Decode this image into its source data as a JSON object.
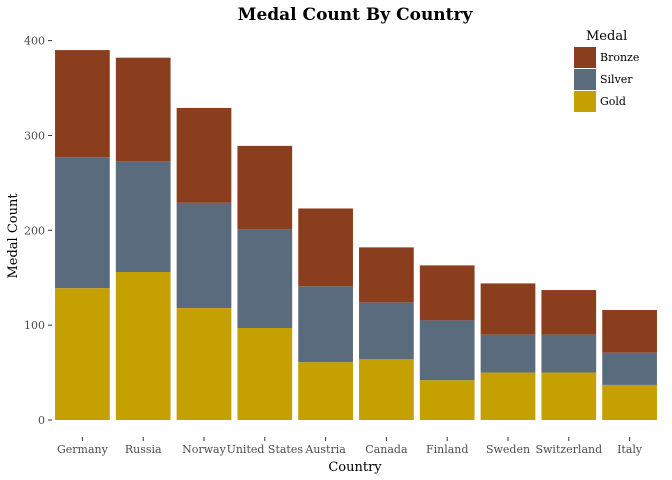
{
  "chart_data": {
    "type": "bar",
    "stacked": true,
    "title": "Medal Count By Country",
    "xlabel": "Country",
    "ylabel": "Medal Count",
    "categories": [
      "Germany",
      "Russia",
      "Norway",
      "United States",
      "Austria",
      "Canada",
      "Finland",
      "Sweden",
      "Switzerland",
      "Italy"
    ],
    "series": [
      {
        "name": "Gold",
        "color": "#c4a000",
        "values": [
          139,
          156,
          118,
          97,
          61,
          64,
          42,
          50,
          50,
          37
        ]
      },
      {
        "name": "Silver",
        "color": "#5b6b7e",
        "values": [
          138,
          117,
          111,
          104,
          80,
          60,
          63,
          40,
          40,
          34
        ]
      },
      {
        "name": "Bronze",
        "color": "#8b3e1e",
        "values": [
          113,
          109,
          100,
          88,
          82,
          58,
          58,
          54,
          47,
          45
        ]
      }
    ],
    "ylim": [
      0,
      400
    ],
    "yticks": [
      0,
      100,
      200,
      300,
      400
    ],
    "grid": false,
    "legend": {
      "title": "Medal",
      "position": "top-right",
      "order": [
        "Bronze",
        "Silver",
        "Gold"
      ]
    }
  }
}
